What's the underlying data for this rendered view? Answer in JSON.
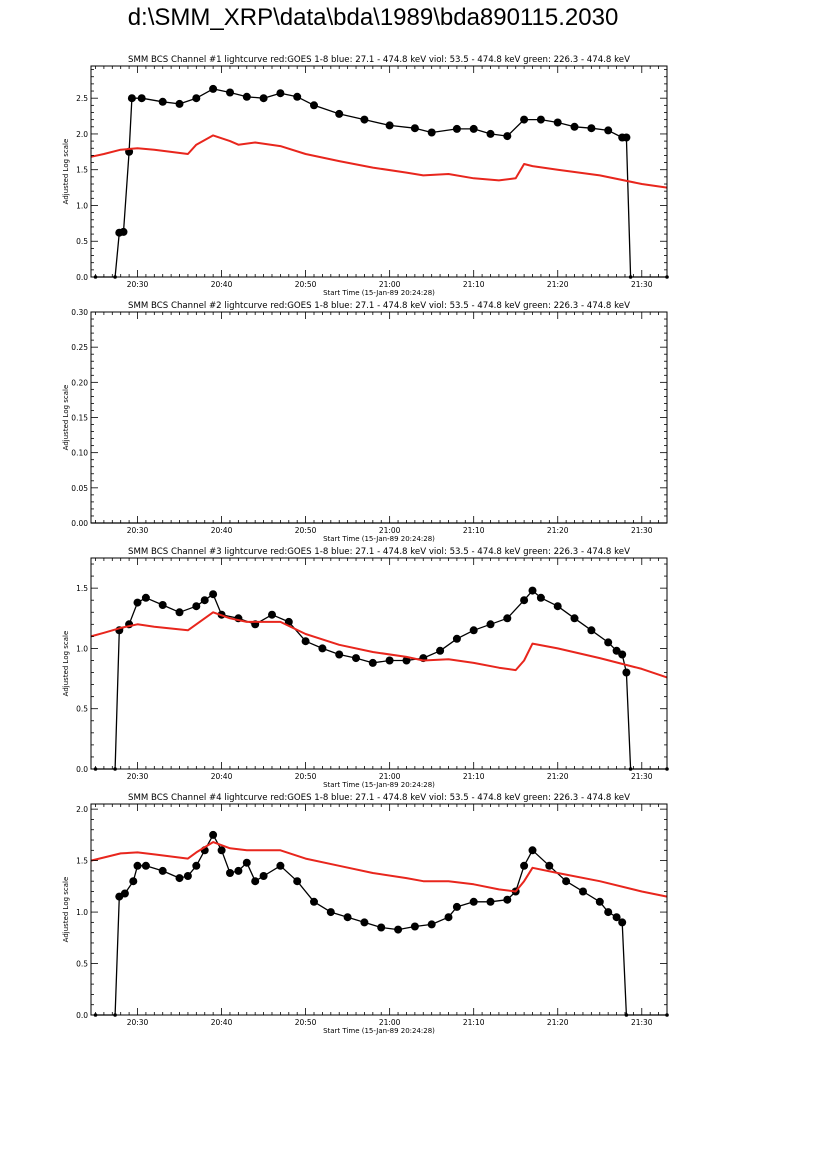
{
  "page": {
    "title": "d:\\SMM_XRP\\data\\bda\\1989\\bda890115.2030"
  },
  "colors": {
    "black_series": "#000000",
    "red_series": "#e8261d"
  },
  "chart_data": [
    {
      "type": "line",
      "title": "SMM BCS Channel #1 lightcurve  red:GOES 1-8  blue: 27.1 - 474.8 keV  viol: 53.5 - 474.8 keV  green: 226.3 - 474.8 keV",
      "xlabel": "Start Time (15-Jan-89 20:24:28)",
      "ylabel": "Adjusted Log scale",
      "xlim": [
        "20:24:28",
        "21:33:00"
      ],
      "ylim": [
        0,
        2.95
      ],
      "xticks": [
        "20:30",
        "20:40",
        "20:50",
        "21:00",
        "21:10",
        "21:20",
        "21:30"
      ],
      "yticks": [
        "0.0",
        "0.5",
        "1.0",
        "1.5",
        "2.0",
        "2.5"
      ],
      "yticks_values": [
        0,
        0.5,
        1.0,
        1.5,
        2.0,
        2.5
      ],
      "series": [
        {
          "color": "#000000",
          "x": [
            "20:25:00",
            "20:27:20",
            "20:27:50",
            "20:28:20",
            "20:29:00",
            "20:29:20",
            "20:30:30",
            "20:33:00",
            "20:35:00",
            "20:37:00",
            "20:39:00",
            "20:41:00",
            "20:43:00",
            "20:45:00",
            "20:47:00",
            "20:49:00",
            "20:51:00",
            "20:54:00",
            "20:57:00",
            "21:00:00",
            "21:03:00",
            "21:05:00",
            "21:08:00",
            "21:10:00",
            "21:12:00",
            "21:14:00",
            "21:16:00",
            "21:18:00",
            "21:20:00",
            "21:22:00",
            "21:24:00",
            "21:26:00",
            "21:27:40",
            "21:28:10",
            "21:28:40",
            "21:33:00"
          ],
          "y": [
            0.0,
            0.0,
            0.62,
            0.63,
            1.75,
            2.5,
            2.5,
            2.45,
            2.42,
            2.5,
            2.63,
            2.58,
            2.52,
            2.5,
            2.57,
            2.52,
            2.4,
            2.28,
            2.2,
            2.12,
            2.08,
            2.02,
            2.07,
            2.07,
            2.0,
            1.97,
            2.2,
            2.2,
            2.16,
            2.1,
            2.08,
            2.05,
            1.95,
            1.95,
            0.0,
            0.0
          ]
        },
        {
          "color": "#e8261d",
          "x": [
            "20:24:28",
            "20:26:00",
            "20:28:00",
            "20:30:00",
            "20:32:00",
            "20:36:00",
            "20:37:00",
            "20:39:00",
            "20:41:00",
            "20:42:00",
            "20:44:00",
            "20:47:00",
            "20:50:00",
            "20:54:00",
            "20:58:00",
            "21:02:00",
            "21:04:00",
            "21:07:00",
            "21:10:00",
            "21:13:00",
            "21:15:00",
            "21:16:00",
            "21:17:00",
            "21:20:00",
            "21:25:00",
            "21:30:00",
            "21:33:00"
          ],
          "y": [
            1.68,
            1.72,
            1.78,
            1.8,
            1.78,
            1.72,
            1.85,
            1.98,
            1.9,
            1.85,
            1.88,
            1.83,
            1.72,
            1.62,
            1.53,
            1.46,
            1.42,
            1.44,
            1.38,
            1.35,
            1.38,
            1.58,
            1.55,
            1.5,
            1.42,
            1.3,
            1.25
          ]
        }
      ]
    },
    {
      "type": "line",
      "title": "SMM BCS Channel #2 lightcurve  red:GOES 1-8  blue: 27.1 - 474.8 keV  viol: 53.5 - 474.8 keV  green: 226.3 - 474.8 keV",
      "xlabel": "Start Time (15-Jan-89 20:24:28)",
      "ylabel": "Adjusted Log scale",
      "xlim": [
        "20:24:28",
        "21:33:00"
      ],
      "ylim": [
        0,
        0.3
      ],
      "xticks": [
        "20:30",
        "20:40",
        "20:50",
        "21:00",
        "21:10",
        "21:20",
        "21:30"
      ],
      "yticks": [
        "0.00",
        "0.05",
        "0.10",
        "0.15",
        "0.20",
        "0.25",
        "0.30"
      ],
      "yticks_values": [
        0,
        0.05,
        0.1,
        0.15,
        0.2,
        0.25,
        0.3
      ],
      "series": [
        {
          "color": "#000000",
          "x": [
            "20:24:28",
            "21:33:00"
          ],
          "y": [
            0.0,
            0.0
          ]
        }
      ]
    },
    {
      "type": "line",
      "title": "SMM BCS Channel #3 lightcurve  red:GOES 1-8  blue: 27.1 - 474.8 keV  viol: 53.5 - 474.8 keV  green: 226.3 - 474.8 keV",
      "xlabel": "Start Time (15-Jan-89 20:24:28)",
      "ylabel": "Adjusted Log scale",
      "xlim": [
        "20:24:28",
        "21:33:00"
      ],
      "ylim": [
        0,
        1.75
      ],
      "xticks": [
        "20:30",
        "20:40",
        "20:50",
        "21:00",
        "21:10",
        "21:20",
        "21:30"
      ],
      "yticks": [
        "0.0",
        "0.5",
        "1.0",
        "1.5"
      ],
      "yticks_values": [
        0,
        0.5,
        1.0,
        1.5
      ],
      "series": [
        {
          "color": "#000000",
          "x": [
            "20:25:00",
            "20:27:20",
            "20:27:50",
            "20:29:00",
            "20:30:00",
            "20:31:00",
            "20:33:00",
            "20:35:00",
            "20:37:00",
            "20:38:00",
            "20:39:00",
            "20:40:00",
            "20:42:00",
            "20:44:00",
            "20:46:00",
            "20:48:00",
            "20:50:00",
            "20:52:00",
            "20:54:00",
            "20:56:00",
            "20:58:00",
            "21:00:00",
            "21:02:00",
            "21:04:00",
            "21:06:00",
            "21:08:00",
            "21:10:00",
            "21:12:00",
            "21:14:00",
            "21:16:00",
            "21:17:00",
            "21:18:00",
            "21:20:00",
            "21:22:00",
            "21:24:00",
            "21:26:00",
            "21:27:00",
            "21:27:40",
            "21:28:10",
            "21:28:40",
            "21:33:00"
          ],
          "y": [
            0.0,
            0.0,
            1.15,
            1.2,
            1.38,
            1.42,
            1.36,
            1.3,
            1.35,
            1.4,
            1.45,
            1.28,
            1.25,
            1.2,
            1.28,
            1.22,
            1.06,
            1.0,
            0.95,
            0.92,
            0.88,
            0.9,
            0.9,
            0.92,
            0.98,
            1.08,
            1.15,
            1.2,
            1.25,
            1.4,
            1.48,
            1.42,
            1.35,
            1.25,
            1.15,
            1.05,
            0.98,
            0.95,
            0.8,
            0.0,
            0.0
          ]
        },
        {
          "color": "#e8261d",
          "x": [
            "20:24:28",
            "20:26:00",
            "20:28:00",
            "20:30:00",
            "20:32:00",
            "20:36:00",
            "20:37:00",
            "20:39:00",
            "20:41:00",
            "20:43:00",
            "20:47:00",
            "20:50:00",
            "20:54:00",
            "20:58:00",
            "21:02:00",
            "21:04:00",
            "21:07:00",
            "21:10:00",
            "21:13:00",
            "21:15:00",
            "21:16:00",
            "21:17:00",
            "21:20:00",
            "21:25:00",
            "21:30:00",
            "21:33:00"
          ],
          "y": [
            1.1,
            1.13,
            1.17,
            1.2,
            1.18,
            1.15,
            1.2,
            1.3,
            1.25,
            1.22,
            1.22,
            1.12,
            1.03,
            0.97,
            0.93,
            0.9,
            0.91,
            0.88,
            0.84,
            0.82,
            0.9,
            1.04,
            1.0,
            0.92,
            0.83,
            0.76
          ]
        }
      ]
    },
    {
      "type": "line",
      "title": "SMM BCS Channel #4 lightcurve  red:GOES 1-8  blue: 27.1 - 474.8 keV  viol: 53.5 - 474.8 keV  green: 226.3 - 474.8 keV",
      "xlabel": "Start Time (15-Jan-89 20:24:28)",
      "ylabel": "Adjusted Log scale",
      "xlim": [
        "20:24:28",
        "21:33:00"
      ],
      "ylim": [
        0,
        2.05
      ],
      "xticks": [
        "20:30",
        "20:40",
        "20:50",
        "21:00",
        "21:10",
        "21:20",
        "21:30"
      ],
      "yticks": [
        "0.0",
        "0.5",
        "1.0",
        "1.5",
        "2.0"
      ],
      "yticks_values": [
        0,
        0.5,
        1.0,
        1.5,
        2.0
      ],
      "series": [
        {
          "color": "#000000",
          "x": [
            "20:25:00",
            "20:27:20",
            "20:27:50",
            "20:28:30",
            "20:29:30",
            "20:30:00",
            "20:31:00",
            "20:33:00",
            "20:35:00",
            "20:36:00",
            "20:37:00",
            "20:38:00",
            "20:39:00",
            "20:40:00",
            "20:41:00",
            "20:42:00",
            "20:43:00",
            "20:44:00",
            "20:45:00",
            "20:47:00",
            "20:49:00",
            "20:51:00",
            "20:53:00",
            "20:55:00",
            "20:57:00",
            "20:59:00",
            "21:01:00",
            "21:03:00",
            "21:05:00",
            "21:07:00",
            "21:08:00",
            "21:10:00",
            "21:12:00",
            "21:14:00",
            "21:15:00",
            "21:16:00",
            "21:17:00",
            "21:19:00",
            "21:21:00",
            "21:23:00",
            "21:25:00",
            "21:26:00",
            "21:27:00",
            "21:27:40",
            "21:28:10",
            "21:33:00"
          ],
          "y": [
            0.0,
            0.0,
            1.15,
            1.18,
            1.3,
            1.45,
            1.45,
            1.4,
            1.33,
            1.35,
            1.45,
            1.6,
            1.75,
            1.6,
            1.38,
            1.4,
            1.48,
            1.3,
            1.35,
            1.45,
            1.3,
            1.1,
            1.0,
            0.95,
            0.9,
            0.85,
            0.83,
            0.86,
            0.88,
            0.95,
            1.05,
            1.1,
            1.1,
            1.12,
            1.2,
            1.45,
            1.6,
            1.45,
            1.3,
            1.2,
            1.1,
            1.0,
            0.95,
            0.9,
            0.0,
            0.0
          ]
        },
        {
          "color": "#e8261d",
          "x": [
            "20:24:28",
            "20:26:00",
            "20:28:00",
            "20:30:00",
            "20:32:00",
            "20:36:00",
            "20:37:00",
            "20:39:00",
            "20:41:00",
            "20:43:00",
            "20:47:00",
            "20:50:00",
            "20:54:00",
            "20:58:00",
            "21:02:00",
            "21:04:00",
            "21:07:00",
            "21:10:00",
            "21:13:00",
            "21:15:00",
            "21:16:00",
            "21:17:00",
            "21:20:00",
            "21:25:00",
            "21:30:00",
            "21:33:00"
          ],
          "y": [
            1.5,
            1.53,
            1.57,
            1.58,
            1.56,
            1.52,
            1.58,
            1.68,
            1.62,
            1.6,
            1.6,
            1.52,
            1.45,
            1.38,
            1.33,
            1.3,
            1.3,
            1.27,
            1.22,
            1.2,
            1.3,
            1.43,
            1.38,
            1.3,
            1.2,
            1.15
          ]
        }
      ]
    }
  ]
}
